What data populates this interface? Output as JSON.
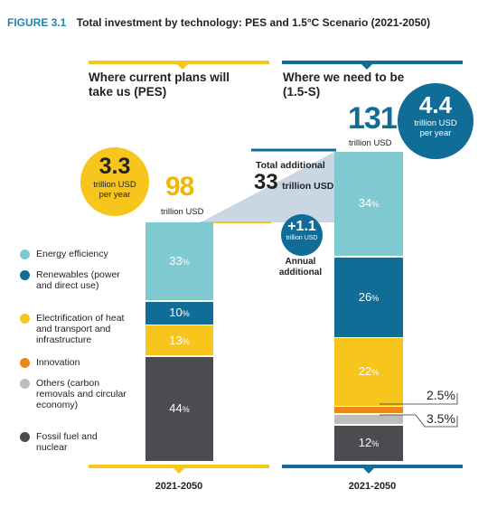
{
  "figure": {
    "number": "FIGURE 3.1",
    "title": "Total investment by technology: PES and 1.5°C Scenario (2021-2050)"
  },
  "columns": {
    "pes_heading": "Where current plans will take us (PES)",
    "s15_heading": "Where we need to be (1.5-S)",
    "pes_period": "2021-2050",
    "s15_period": "2021-2050"
  },
  "callouts": {
    "pes_annual_value": "3.3",
    "pes_annual_unit": "trillion USD per year",
    "s15_annual_value": "4.4",
    "s15_annual_unit": "trillion USD per year",
    "pes_total_value": "98",
    "pes_total_unit": "trillion USD",
    "s15_total_value": "131",
    "s15_total_unit": "trillion USD",
    "additional_label": "Total additional",
    "additional_value": "33",
    "additional_unit": "trillion USD",
    "annual_additional_value": "+1.1",
    "annual_additional_unit": "trillion USD",
    "annual_additional_label": "Annual additional"
  },
  "colors": {
    "energy_efficiency": "#7ecad0",
    "renewables": "#0f6d97",
    "electrification": "#f7c51c",
    "innovation": "#ec8a17",
    "others": "#bdbdbd",
    "fossil": "#4a4c4f",
    "pes_accent": "#f7c51c",
    "s15_accent": "#0f6d97",
    "connector": "#c9d7e5"
  },
  "chart_data": {
    "type": "bar",
    "stacked": true,
    "unit": "trillion USD",
    "categories": [
      "PES",
      "1.5-S"
    ],
    "totals": [
      98,
      131
    ],
    "series": [
      {
        "name": "Energy efficiency",
        "color_key": "energy_efficiency",
        "percent": [
          33,
          34
        ]
      },
      {
        "name": "Renewables (power and direct use)",
        "color_key": "renewables",
        "percent": [
          10,
          26
        ]
      },
      {
        "name": "Electrification of heat and transport and infrastructure",
        "color_key": "electrification",
        "percent": [
          13,
          22
        ]
      },
      {
        "name": "Innovation",
        "color_key": "innovation",
        "percent": [
          0,
          2.5
        ]
      },
      {
        "name": "Others (carbon removals and circular economy)",
        "color_key": "others",
        "percent": [
          0,
          3.5
        ]
      },
      {
        "name": "Fossil fuel and nuclear",
        "color_key": "fossil",
        "percent": [
          44,
          12
        ]
      }
    ],
    "legend_position": "left"
  }
}
